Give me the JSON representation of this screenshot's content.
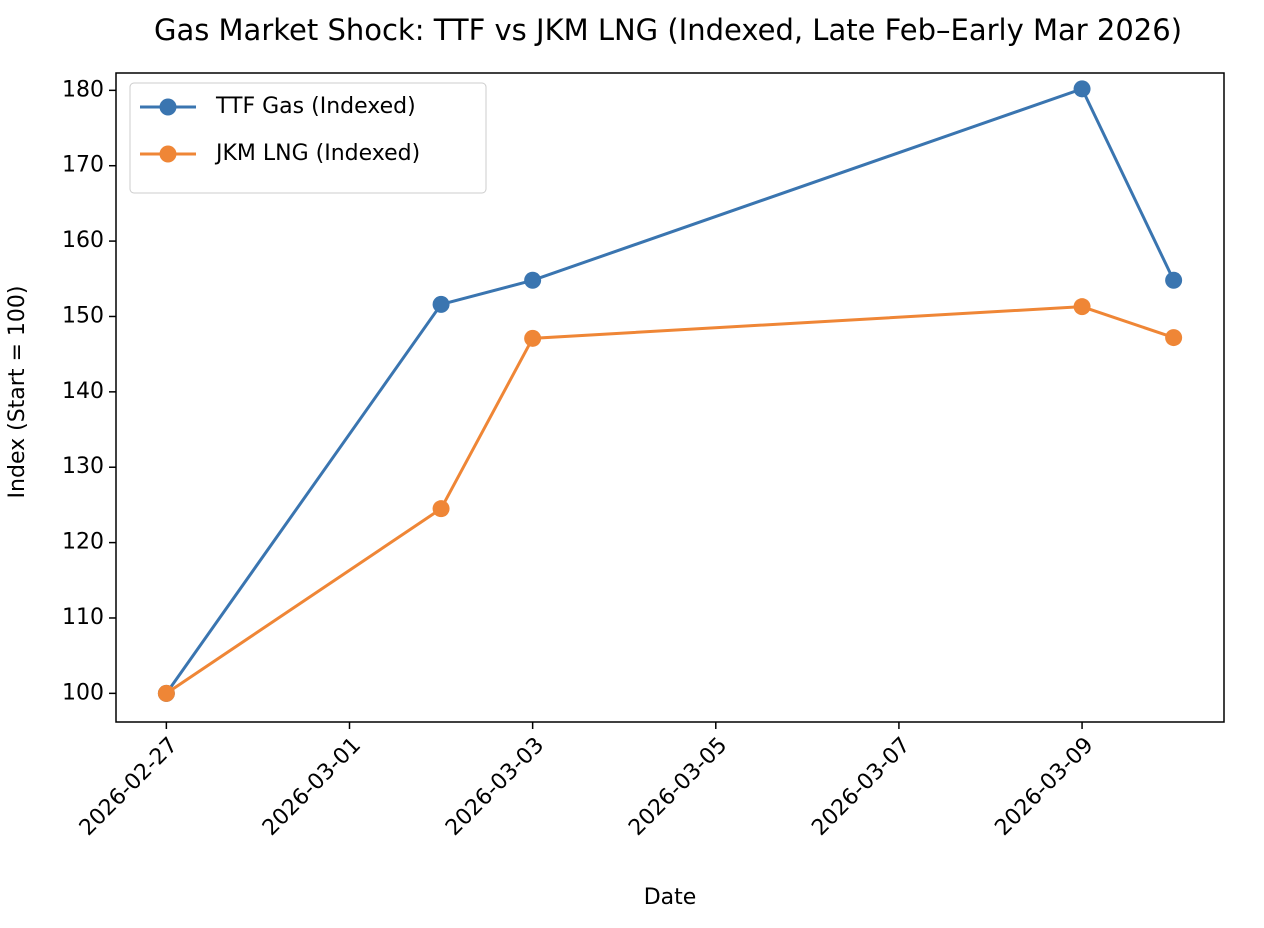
{
  "chart_data": {
    "type": "line",
    "title": "Gas Market Shock: TTF vs JKM LNG (Indexed, Late Feb–Early Mar 2026)",
    "x_label": "Date",
    "y_label": "Index (Start = 100)",
    "x": [
      "2026-02-27",
      "2026-03-02",
      "2026-03-03",
      "2026-03-09",
      "2026-03-10"
    ],
    "series": [
      {
        "name": "TTF Gas (Indexed)",
        "color": "#3a75b0",
        "values": [
          100,
          151.6,
          154.8,
          180.2,
          154.8
        ]
      },
      {
        "name": "JKM LNG (Indexed)",
        "color": "#ef8636",
        "values": [
          100,
          124.5,
          147.1,
          151.3,
          147.2
        ]
      }
    ],
    "xlim": [
      "2026-02-26T10:48",
      "2026-03-10T13:12"
    ],
    "xticks": [
      "2026-02-27",
      "2026-03-01",
      "2026-03-03",
      "2026-03-05",
      "2026-03-07",
      "2026-03-09"
    ],
    "ylim": [
      96.2,
      182.3
    ],
    "yticks": [
      100,
      110,
      120,
      130,
      140,
      150,
      160,
      170,
      180
    ],
    "legend": "upper left",
    "grid": false
  }
}
